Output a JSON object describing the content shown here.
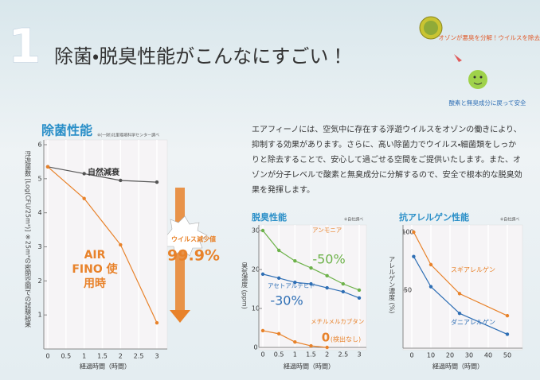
{
  "header": {
    "number": "1",
    "title": "除菌・脱臭性能がこんなにすごい！"
  },
  "illustration": {
    "caption_top": "オゾンが悪臭を分解！ウイルスを除去！",
    "caption_bottom": "酸素と無臭成分に戻って安全"
  },
  "description": "エアフィーノには、空気中に存在する浮遊ウイルスをオゾンの働きにより、抑制する効果があります。さらに、高い除菌力でウイルス・細菌類をしっかりと除去することで、安心して過ごせる空間をご提供いたします。また、オゾンが分子レベルで酸素と無臭成分に分解するので、安全で根本的な脱臭効果を発揮します。",
  "chart_data": [
    {
      "type": "line",
      "title": "除菌性能",
      "note": "※(一財)北里環境科学センター調べ",
      "y_label": "浮遊菌数 [Log(CFU/25m³)] ※25m³の密閉空間での試験結果",
      "x_label": "経過時間（時間）",
      "x": [
        0,
        1,
        2,
        3
      ],
      "series": [
        {
          "name": "自然減衰",
          "color": "#555555",
          "values": [
            5.35,
            5.15,
            4.95,
            4.9
          ]
        },
        {
          "name": "AIR FINO 使用時",
          "color": "#e8822a",
          "values": [
            5.35,
            4.42,
            3.06,
            0.77
          ]
        }
      ],
      "xlim": [
        0,
        3
      ],
      "xticks": [
        0,
        0.5,
        1,
        1.5,
        2,
        2.5,
        3
      ],
      "ylim": [
        0,
        6
      ],
      "yticks": [
        1,
        2,
        3,
        4,
        5,
        6
      ],
      "annotations": [
        {
          "text": "ウイルス減少値"
        },
        {
          "text": "99.9%"
        }
      ]
    },
    {
      "type": "line",
      "title": "脱臭性能",
      "note": "※自社調べ",
      "y_label": "臭気濃度 (ppm)",
      "x_label": "経過時間（時間）",
      "x": [
        0,
        0.5,
        1,
        1.5,
        2,
        2.5,
        3
      ],
      "series": [
        {
          "name": "アンモニア",
          "color": "#6db24a",
          "values": [
            30,
            24.9,
            22.2,
            20.4,
            18.4,
            16.3,
            14.7
          ]
        },
        {
          "name": "アセトアルデヒド",
          "color": "#2f6fb5",
          "values": [
            18.8,
            17.8,
            16.7,
            16.3,
            15.3,
            14.3,
            12.7
          ]
        },
        {
          "name": "メチルメルカプタン",
          "color": "#e8822a",
          "values": [
            4.3,
            3.5,
            1.4,
            0.4,
            0,
            null,
            null
          ]
        }
      ],
      "xlim": [
        0,
        3
      ],
      "xticks": [
        0,
        0.5,
        1,
        1.5,
        2,
        2.5,
        3
      ],
      "ylim": [
        0,
        30
      ],
      "yticks": [
        0,
        10,
        20,
        30
      ],
      "annotations": [
        {
          "text": "-50%"
        },
        {
          "text": "-30%"
        },
        {
          "text": "0"
        },
        {
          "text": "(検出なし)"
        }
      ]
    },
    {
      "type": "line",
      "title": "抗アレルゲン性能",
      "note": "※自社調べ",
      "y_label": "アレルゲン濃度 (%)",
      "x_label": "経過時間（時間）",
      "x": [
        1,
        10,
        25,
        50
      ],
      "series": [
        {
          "name": "スギアレルゲン",
          "color": "#e8822a",
          "values": [
            100,
            72,
            47,
            28
          ]
        },
        {
          "name": "ダニアレルゲン",
          "color": "#2f6fb5",
          "values": [
            79,
            53,
            30,
            12
          ]
        }
      ],
      "xlim": [
        0,
        50
      ],
      "xticks": [
        0,
        10,
        20,
        30,
        40,
        50
      ],
      "ylim": [
        0,
        100
      ],
      "yticks": [
        50,
        100
      ],
      "annotations": []
    }
  ]
}
